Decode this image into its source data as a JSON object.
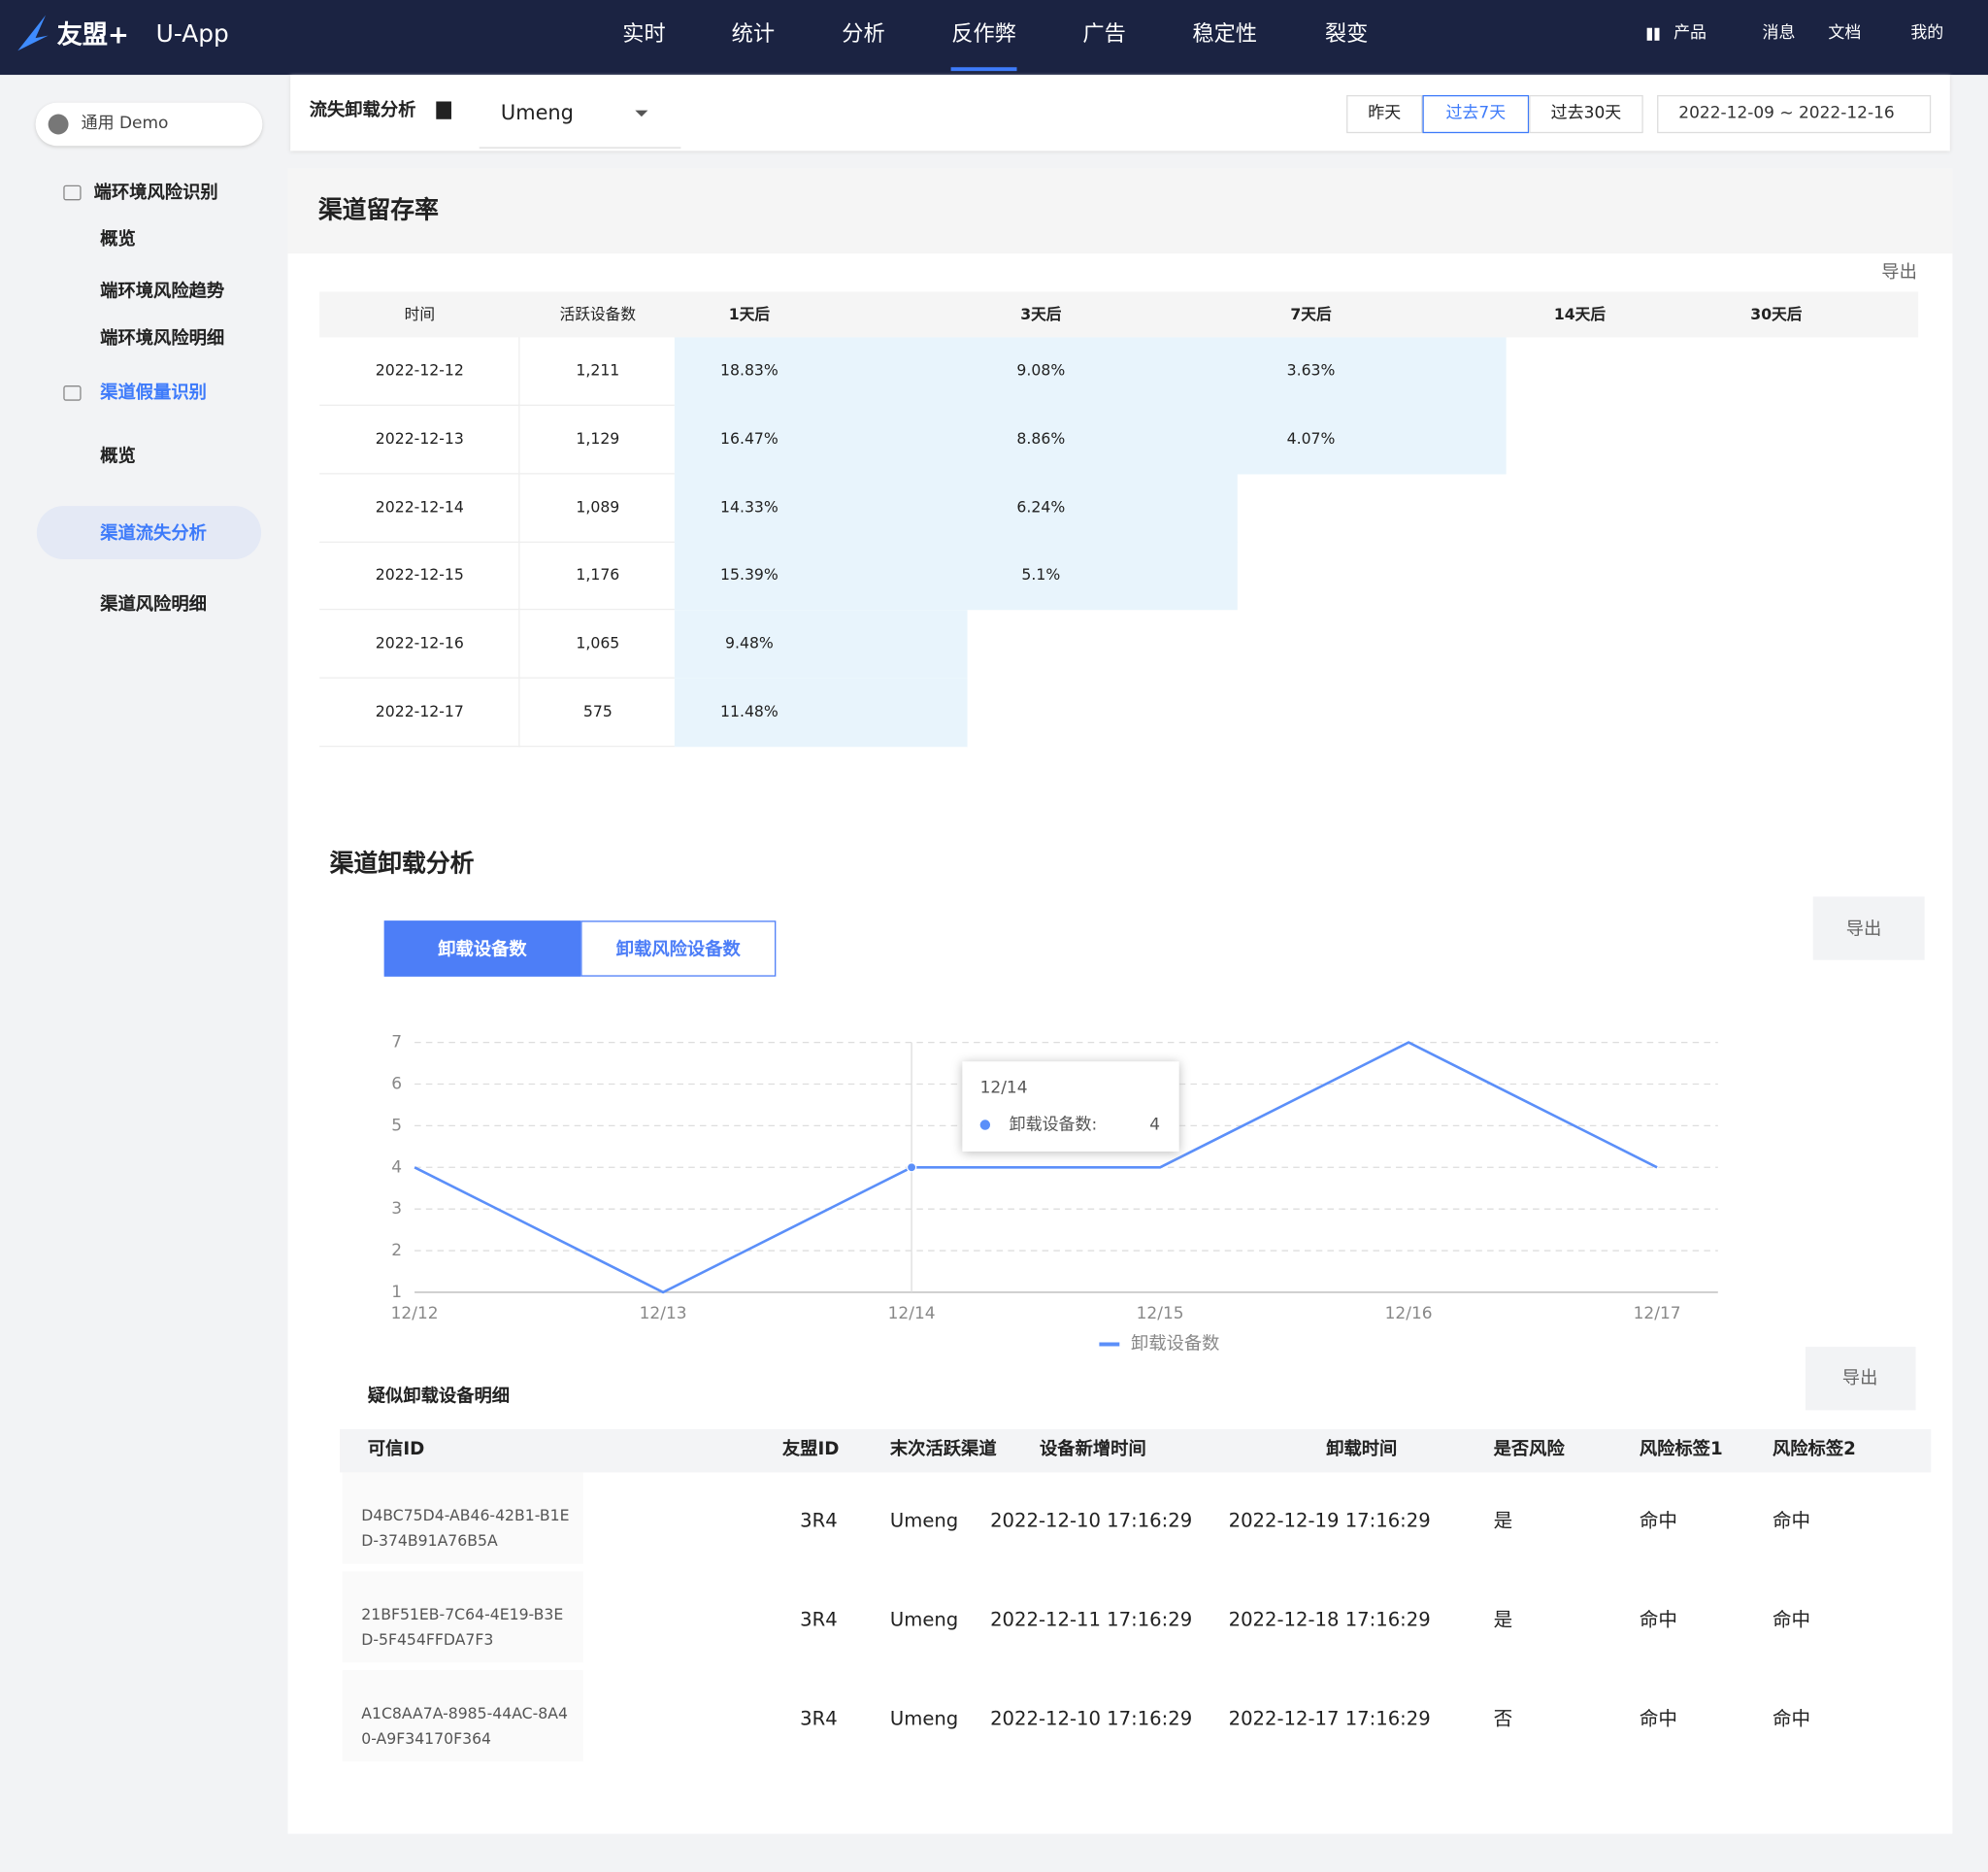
{
  "nav": {
    "brand": "友盟+",
    "app": "U-App",
    "tabs": [
      "实时",
      "统计",
      "分析",
      "反作弊",
      "广告",
      "稳定性",
      "裂变"
    ],
    "active": 3,
    "right": [
      "产品",
      "消息",
      "文档",
      "我的"
    ]
  },
  "sidebar": {
    "app_select": "通用 Demo",
    "groups": [
      {
        "title": "端环境风险识别",
        "items": [
          "概览",
          "端环境风险趋势",
          "端环境风险明细"
        ]
      },
      {
        "title": "渠道假量识别",
        "items": [
          "概览",
          "渠道流失分析",
          "渠道风险明细"
        ]
      }
    ],
    "active_group": 1,
    "active_item": 1
  },
  "toolbar": {
    "title": "流失卸载分析",
    "channel": "Umeng",
    "ranges": [
      "昨天",
      "过去7天",
      "过去30天"
    ],
    "active_range": 1,
    "date_range": "2022-12-09 ~ 2022-12-16"
  },
  "retention": {
    "title": "渠道留存率",
    "export": "导出",
    "columns": [
      "时间",
      "活跃设备数",
      "1天后",
      "3天后",
      "7天后",
      "14天后",
      "30天后"
    ],
    "rows": [
      [
        "2022-12-12",
        "1,211",
        "18.83%",
        "9.08%",
        "3.63%"
      ],
      [
        "2022-12-13",
        "1,129",
        "16.47%",
        "8.86%",
        "4.07%"
      ],
      [
        "2022-12-14",
        "1,089",
        "14.33%",
        "6.24%"
      ],
      [
        "2022-12-15",
        "1,176",
        "15.39%",
        "5.1%"
      ],
      [
        "2022-12-16",
        "1,065",
        "9.48%"
      ],
      [
        "2022-12-17",
        "575",
        "11.48%"
      ]
    ]
  },
  "uninstall": {
    "title": "渠道卸载分析",
    "tabs": [
      "卸载设备数",
      "卸载风险设备数"
    ],
    "active_tab": 0,
    "export": "导出"
  },
  "chart_data": {
    "type": "line",
    "categories": [
      "12/12",
      "12/13",
      "12/14",
      "12/15",
      "12/16",
      "12/17"
    ],
    "series": [
      {
        "name": "卸载设备数",
        "color": "#5b8ff9",
        "values": [
          4,
          1,
          4,
          4,
          7,
          4
        ]
      }
    ],
    "ylim": [
      1,
      7
    ],
    "yticks": [
      1,
      2,
      3,
      4,
      5,
      6,
      7
    ],
    "grid": true,
    "legend": "bottom",
    "tooltip": {
      "index": 2,
      "label": "卸载设备数:"
    }
  },
  "detail": {
    "title": "疑似卸载设备明细",
    "export": "导出",
    "columns": [
      "可信ID",
      "友盟ID",
      "末次活跃渠道",
      "设备新增时间",
      "卸载时间",
      "是否风险",
      "风险标签1",
      "风险标签2"
    ],
    "rows": [
      [
        "D4BC75D4-AB46-42B1-B1ED-374B91A76B5A",
        "3R4",
        "Umeng",
        "2022-12-10 17:16:29",
        "2022-12-19 17:16:29",
        "是",
        "命中",
        "命中"
      ],
      [
        "21BF51EB-7C64-4E19-B3ED-5F454FFDA7F3",
        "3R4",
        "Umeng",
        "2022-12-11 17:16:29",
        "2022-12-18 17:16:29",
        "是",
        "命中",
        "命中"
      ],
      [
        "A1C8AA7A-8985-44AC-8A40-A9F34170F364",
        "3R4",
        "Umeng",
        "2022-12-10 17:16:29",
        "2022-12-17 17:16:29",
        "否",
        "命中",
        "命中"
      ]
    ]
  }
}
